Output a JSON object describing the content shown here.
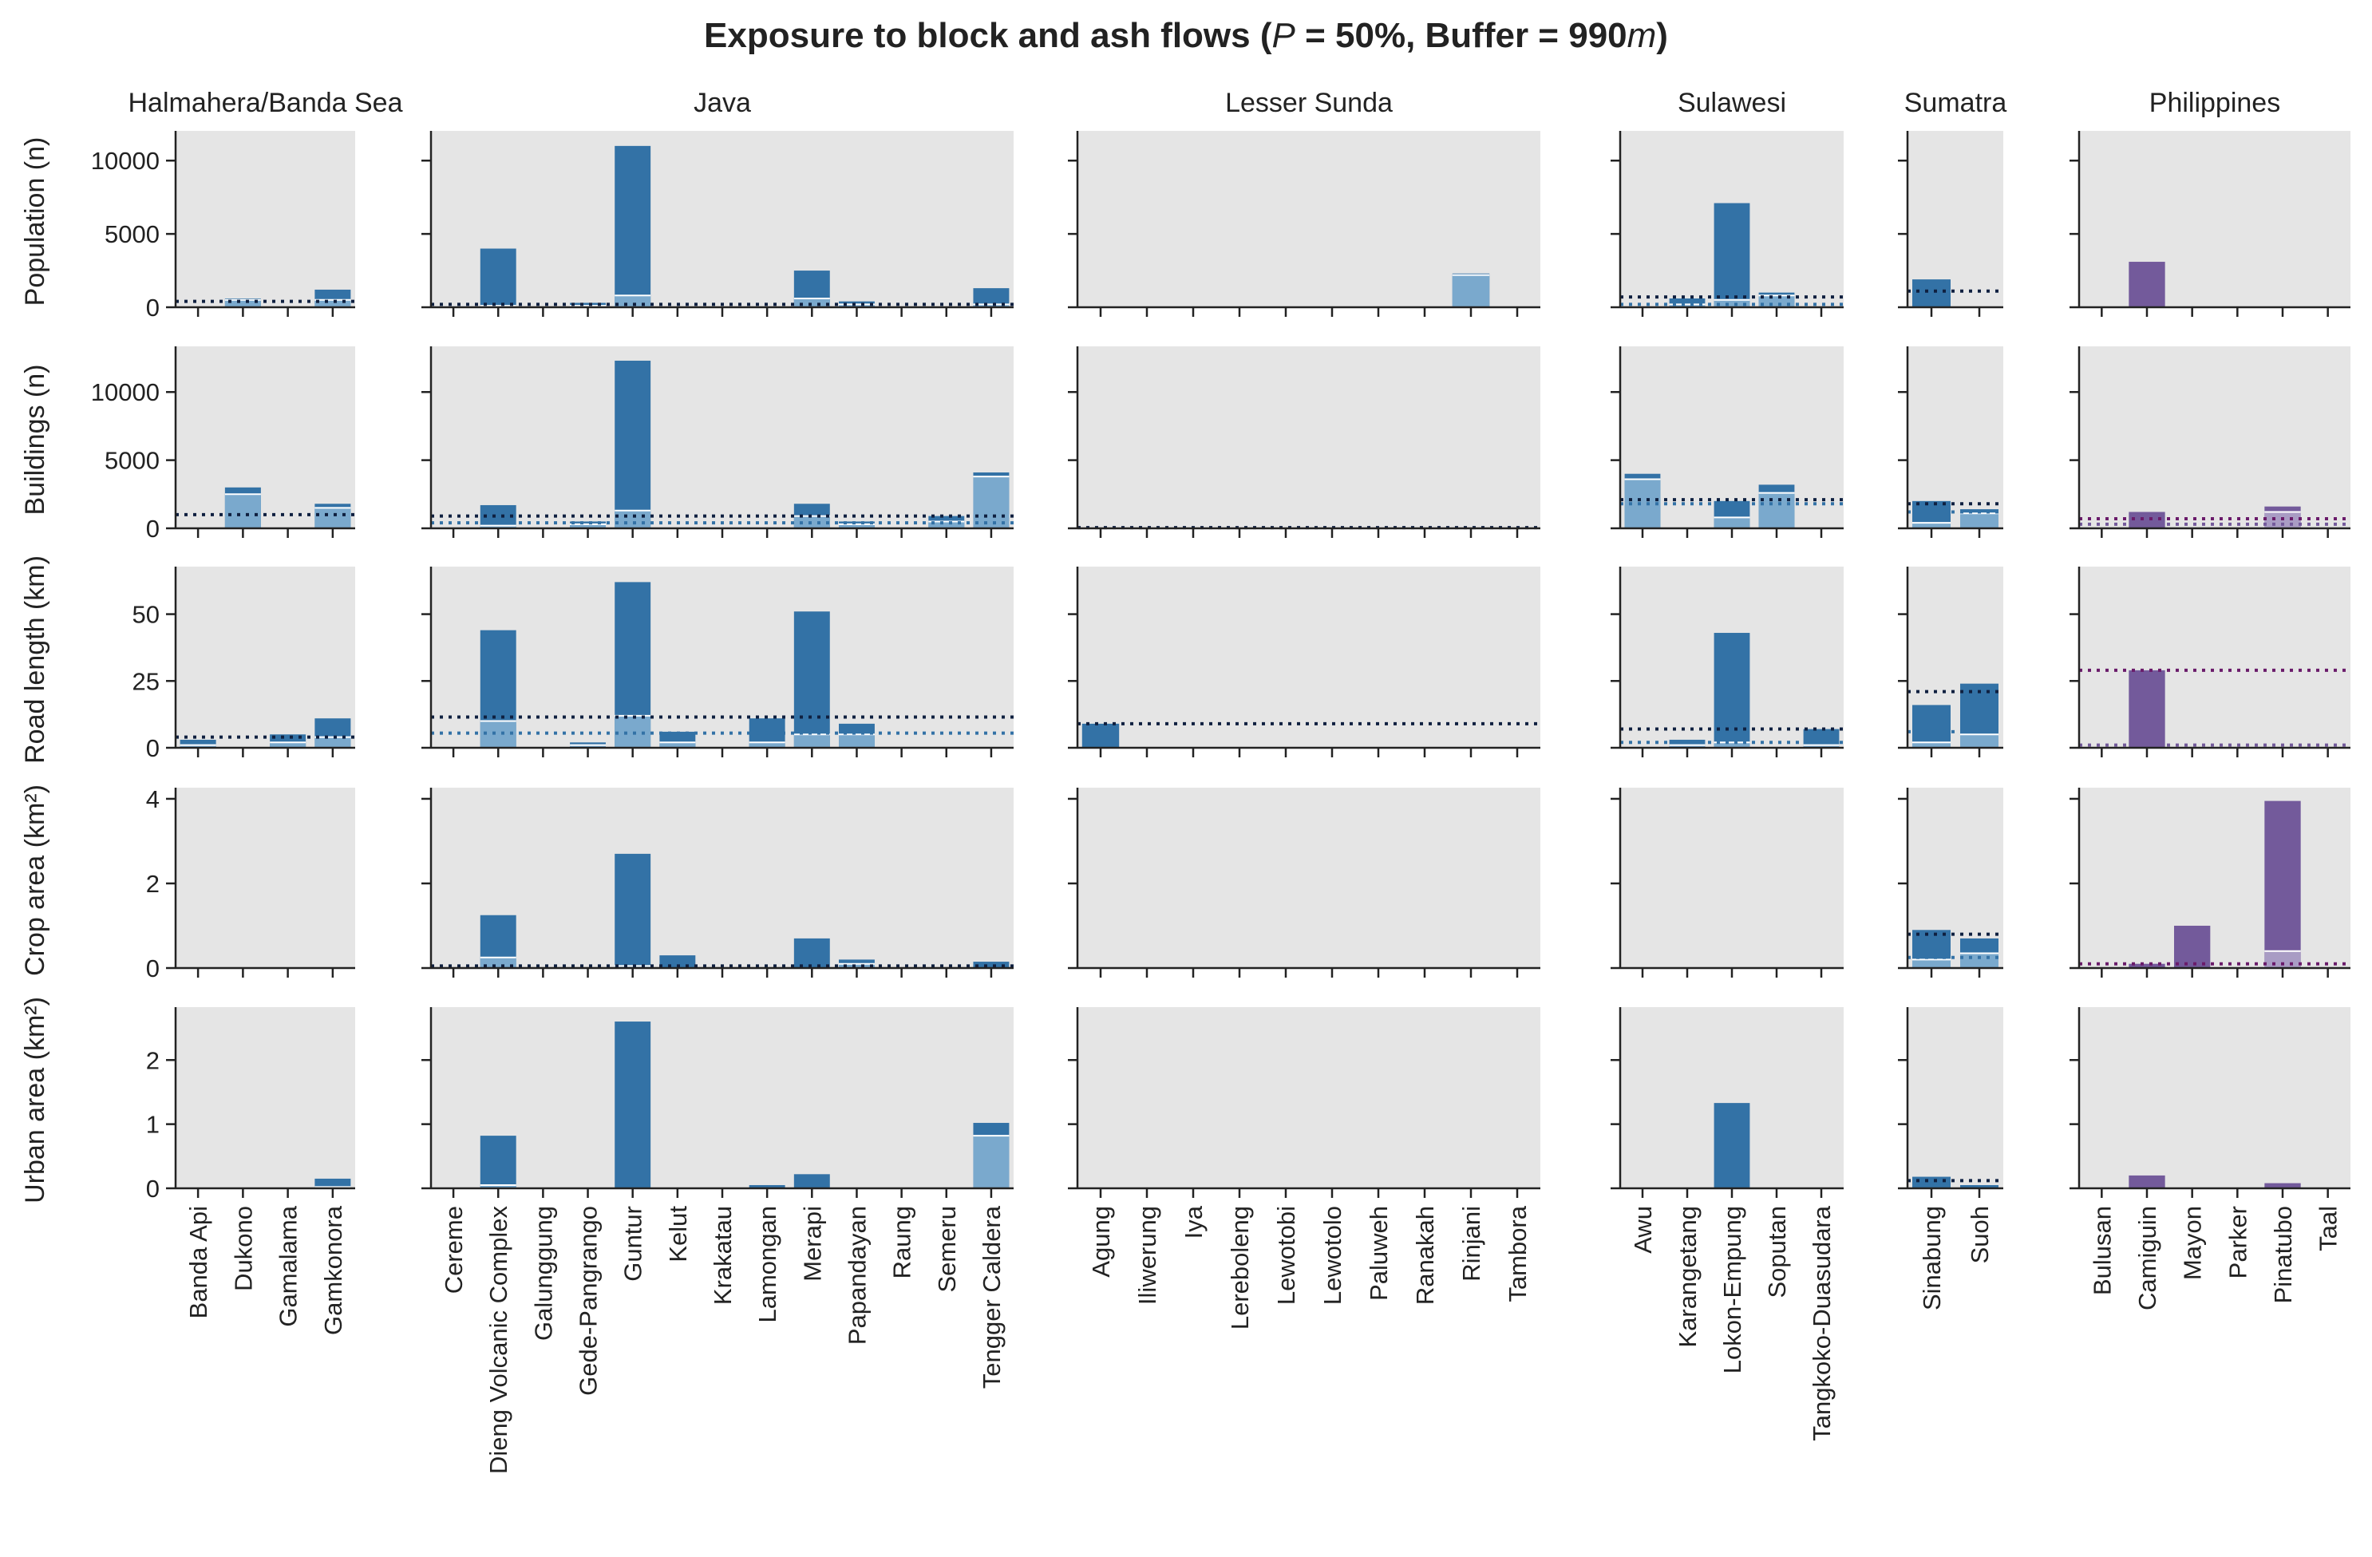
{
  "chart_data": {
    "type": "bar",
    "title": "Exposure to block and ash flows (P = 50%, Buffer = 990m)",
    "stacked": "overlaid-two-shades",
    "grid": false,
    "background": "#e5e5e5",
    "groups": [
      {
        "name": "Halmahera/Banda Sea",
        "color": "#3372a6",
        "color_light": "#7aa9cd",
        "line_color": "#0f2040",
        "volcanoes": [
          "Banda Api",
          "Dukono",
          "Gamalama",
          "Gamkonora"
        ],
        "rows": [
          {
            "values": [
              0,
              600,
              0,
              1200
            ],
            "light": [
              0,
              500,
              0,
              500
            ],
            "lines": [
              400
            ]
          },
          {
            "values": [
              0,
              3000,
              0,
              1800
            ],
            "light": [
              0,
              2500,
              0,
              1500
            ],
            "lines": [
              1000
            ]
          },
          {
            "values": [
              3,
              0,
              5,
              11
            ],
            "light": [
              1,
              0,
              2,
              4
            ],
            "lines": [
              4
            ]
          },
          {
            "values": [
              0,
              0,
              0,
              0
            ],
            "light": [
              0,
              0,
              0,
              0
            ],
            "lines": []
          },
          {
            "values": [
              0,
              0,
              0,
              0.15
            ],
            "light": [
              0,
              0,
              0,
              0.02
            ],
            "lines": []
          }
        ]
      },
      {
        "name": "Java",
        "color": "#3372a6",
        "color_light": "#7aa9cd",
        "line_color": "#0f2040",
        "volcanoes": [
          "Cereme",
          "Dieng Volcanic Complex",
          "Galunggung",
          "Gede-Pangrango",
          "Guntur",
          "Kelut",
          "Krakatau",
          "Lamongan",
          "Merapi",
          "Papandayan",
          "Raung",
          "Semeru",
          "Tengger Caldera"
        ],
        "rows": [
          {
            "values": [
              100,
              4000,
              0,
              300,
              11000,
              0,
              0,
              0,
              2500,
              400,
              0,
              0,
              1300
            ],
            "light": [
              50,
              100,
              0,
              100,
              800,
              0,
              0,
              0,
              600,
              200,
              0,
              0,
              200
            ],
            "lines": [
              200
            ]
          },
          {
            "values": [
              0,
              1700,
              0,
              500,
              12300,
              0,
              0,
              0,
              1800,
              500,
              0,
              900,
              4100
            ],
            "light": [
              0,
              200,
              0,
              300,
              1300,
              0,
              0,
              0,
              900,
              300,
              0,
              500,
              3800
            ],
            "lines": [
              900,
              400
            ]
          },
          {
            "values": [
              0,
              44,
              0,
              2,
              62,
              6,
              0,
              11,
              51,
              9,
              0,
              0,
              0
            ],
            "light": [
              0,
              10,
              0,
              1,
              12,
              2,
              0,
              2,
              5,
              5,
              0,
              0,
              0
            ],
            "lines": [
              11.5,
              5.5
            ]
          },
          {
            "values": [
              0,
              1.25,
              0,
              0,
              2.7,
              0.3,
              0,
              0,
              0.7,
              0.2,
              0,
              0,
              0.15
            ],
            "light": [
              0,
              0.25,
              0,
              0,
              0.05,
              0,
              0,
              0,
              0,
              0.1,
              0,
              0,
              0
            ],
            "lines": [
              0.05
            ]
          },
          {
            "values": [
              0,
              0.82,
              0,
              0,
              2.6,
              0,
              0,
              0.05,
              0.22,
              0,
              0,
              0,
              1.02
            ],
            "light": [
              0,
              0.05,
              0,
              0,
              0,
              0,
              0,
              0,
              0,
              0,
              0,
              0,
              0.82
            ],
            "lines": []
          }
        ]
      },
      {
        "name": "Lesser Sunda",
        "color": "#3372a6",
        "color_light": "#7aa9cd",
        "line_color": "#0f2040",
        "volcanoes": [
          "Agung",
          "Iliwerung",
          "Iya",
          "Lereboleng",
          "Lewotobi",
          "Lewotolo",
          "Paluweh",
          "Ranakah",
          "Rinjani",
          "Tambora"
        ],
        "rows": [
          {
            "values": [
              0,
              0,
              0,
              0,
              0,
              0,
              0,
              0,
              2300,
              0
            ],
            "light": [
              0,
              0,
              0,
              0,
              0,
              0,
              0,
              0,
              2200,
              0
            ],
            "lines": []
          },
          {
            "values": [
              0,
              0,
              0,
              0,
              0,
              0,
              0,
              0,
              0,
              0
            ],
            "light": [
              0,
              0,
              0,
              0,
              0,
              0,
              0,
              0,
              0,
              0
            ],
            "lines": [
              50
            ]
          },
          {
            "values": [
              9,
              0,
              0,
              0,
              0,
              0,
              0,
              0,
              0,
              0
            ],
            "light": [
              0,
              0,
              0,
              0,
              0,
              0,
              0,
              0,
              0,
              0
            ],
            "lines": [
              9
            ]
          },
          {
            "values": [
              0,
              0,
              0,
              0,
              0,
              0,
              0,
              0,
              0,
              0
            ],
            "light": [
              0,
              0,
              0,
              0,
              0,
              0,
              0,
              0,
              0,
              0
            ],
            "lines": []
          },
          {
            "values": [
              0,
              0,
              0,
              0,
              0,
              0,
              0,
              0,
              0,
              0
            ],
            "light": [
              0,
              0,
              0,
              0,
              0,
              0,
              0,
              0,
              0,
              0
            ],
            "lines": []
          }
        ]
      },
      {
        "name": "Sulawesi",
        "color": "#3372a6",
        "color_light": "#7aa9cd",
        "line_color": "#0f2040",
        "volcanoes": [
          "Awu",
          "Karangetang",
          "Lokon-Empung",
          "Soputan",
          "Tangkoko-Duasudara"
        ],
        "rows": [
          {
            "values": [
              0,
              600,
              7100,
              1000,
              0
            ],
            "light": [
              0,
              200,
              500,
              800,
              0
            ],
            "lines": [
              700,
              200
            ]
          },
          {
            "values": [
              4000,
              0,
              2000,
              3200,
              0
            ],
            "light": [
              3600,
              0,
              800,
              2600,
              0
            ],
            "lines": [
              2100,
              1800
            ]
          },
          {
            "values": [
              0,
              3,
              43,
              0,
              7
            ],
            "light": [
              0,
              1,
              2,
              0,
              1
            ],
            "lines": [
              7,
              2
            ]
          },
          {
            "values": [
              0,
              0,
              0,
              0,
              0
            ],
            "light": [
              0,
              0,
              0,
              0,
              0
            ],
            "lines": []
          },
          {
            "values": [
              0,
              0,
              1.33,
              0,
              0
            ],
            "light": [
              0,
              0,
              0,
              0,
              0
            ],
            "lines": []
          }
        ]
      },
      {
        "name": "Sumatra",
        "color": "#3372a6",
        "color_light": "#7aa9cd",
        "line_color": "#0f2040",
        "volcanoes": [
          "Sinabung",
          "Suoh"
        ],
        "rows": [
          {
            "values": [
              1900,
              0
            ],
            "light": [
              0,
              0
            ],
            "lines": [
              1100
            ]
          },
          {
            "values": [
              2000,
              1400
            ],
            "light": [
              400,
              1100
            ],
            "lines": [
              1800,
              1200
            ]
          },
          {
            "values": [
              16,
              24
            ],
            "light": [
              2,
              5
            ],
            "lines": [
              21,
              6
            ]
          },
          {
            "values": [
              0.9,
              0.7
            ],
            "light": [
              0.2,
              0.35
            ],
            "lines": [
              0.8,
              0.25
            ]
          },
          {
            "values": [
              0.18,
              0.05
            ],
            "light": [
              0,
              0
            ],
            "lines": [
              0.12
            ]
          }
        ]
      },
      {
        "name": "Philippines",
        "color": "#735a9b",
        "color_light": "#a99cc4",
        "line_color": "#6a1b6a",
        "volcanoes": [
          "Bulusan",
          "Camiguin",
          "Mayon",
          "Parker",
          "Pinatubo",
          "Taal"
        ],
        "rows": [
          {
            "values": [
              0,
              3100,
              0,
              0,
              0,
              0
            ],
            "light": [
              0,
              0,
              0,
              0,
              0,
              0
            ],
            "lines": []
          },
          {
            "values": [
              0,
              1200,
              0,
              0,
              1600,
              0
            ],
            "light": [
              0,
              0,
              0,
              0,
              1200,
              0
            ],
            "lines": [
              700,
              300
            ]
          },
          {
            "values": [
              0,
              29,
              0,
              0,
              0,
              0
            ],
            "light": [
              0,
              0,
              0,
              0,
              0,
              0
            ],
            "lines": [
              29,
              1
            ]
          },
          {
            "values": [
              0,
              0.1,
              1.0,
              0,
              3.95,
              0
            ],
            "light": [
              0,
              0,
              0,
              0,
              0.4,
              0
            ],
            "lines": [
              0.1
            ]
          },
          {
            "values": [
              0,
              0.2,
              0,
              0,
              0.08,
              0
            ],
            "light": [
              0,
              0,
              0,
              0,
              0,
              0
            ],
            "lines": []
          }
        ]
      }
    ],
    "rows": [
      {
        "ylabel": "Population (n)",
        "ylim": [
          0,
          11700
        ],
        "ticks": [
          0,
          5000,
          10000
        ]
      },
      {
        "ylabel": "Buildings (n)",
        "ylim": [
          0,
          13000
        ],
        "ticks": [
          0,
          5000,
          10000
        ]
      },
      {
        "ylabel": "Road length (km)",
        "ylim": [
          0,
          66
        ],
        "ticks": [
          0,
          25,
          50
        ]
      },
      {
        "ylabel": "Crop area (km²)",
        "ylim": [
          0,
          4.15
        ],
        "ticks": [
          0,
          2,
          4
        ]
      },
      {
        "ylabel": "Urban area (km²)",
        "ylim": [
          0,
          2.75
        ],
        "ticks": [
          0,
          1,
          2
        ]
      }
    ]
  }
}
